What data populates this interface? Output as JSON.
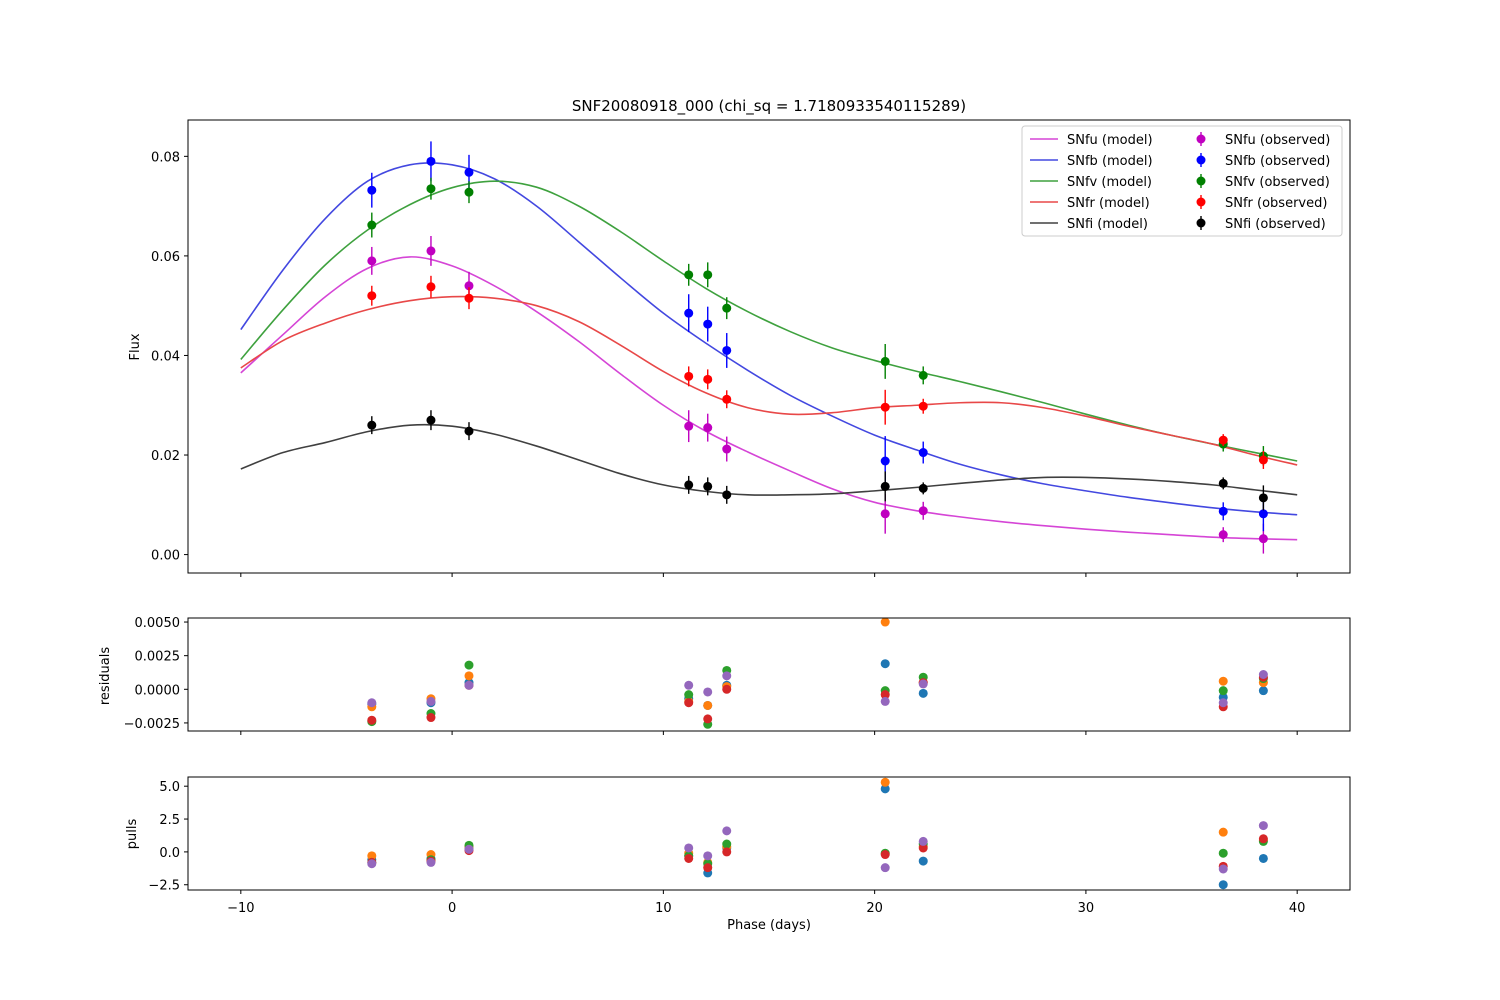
{
  "chart_data": [
    {
      "type": "line",
      "title": "SNF20080918_000 (chi_sq = 1.7180933540115289)",
      "xlabel": "",
      "ylabel": "Flux",
      "xlim": [
        -12.5,
        42.5
      ],
      "ylim": [
        -0.0037,
        0.0873
      ],
      "xticks": [
        -10,
        0,
        10,
        20,
        30,
        40
      ],
      "yticks": [
        0.0,
        0.02,
        0.04,
        0.06,
        0.08
      ],
      "ytick_labels": [
        "0.00",
        "0.02",
        "0.04",
        "0.06",
        "0.08"
      ],
      "legend_position": "top-right",
      "legend_columns": 2,
      "legend_entries": [
        "SNfu (model)",
        "SNfb (model)",
        "SNfv (model)",
        "SNfr (model)",
        "SNfi (model)",
        "SNfu (observed)",
        "SNfb (observed)",
        "SNfv (observed)",
        "SNfr (observed)",
        "SNfi (observed)"
      ],
      "obs_x": [
        -3.8,
        -1.0,
        0.8,
        11.2,
        12.1,
        13.0,
        20.5,
        22.3,
        36.5,
        38.4
      ],
      "series": [
        {
          "name": "SNfu",
          "model_label": "SNfu (model)",
          "observed_label": "SNfu (observed)",
          "model_color": "#d545d6",
          "observed_color": "#c000c0",
          "model_x": [
            -10,
            -8,
            -6,
            -4,
            -2,
            0,
            2,
            4,
            6,
            8,
            10,
            12,
            14,
            16,
            18,
            20,
            22,
            24,
            26,
            28,
            30,
            32,
            34,
            36,
            38,
            40
          ],
          "model_y": [
            0.0365,
            0.0442,
            0.0518,
            0.0575,
            0.0598,
            0.058,
            0.054,
            0.0488,
            0.0428,
            0.0362,
            0.03,
            0.0248,
            0.0206,
            0.0168,
            0.0132,
            0.0105,
            0.0088,
            0.0076,
            0.0066,
            0.0058,
            0.0051,
            0.0045,
            0.004,
            0.0035,
            0.0032,
            0.003
          ],
          "obs_y": [
            0.059,
            0.061,
            0.054,
            0.0258,
            0.0255,
            0.0212,
            0.0082,
            0.0088,
            0.004,
            0.0032
          ],
          "obs_err": [
            0.0028,
            0.003,
            0.0028,
            0.0032,
            0.0028,
            0.0025,
            0.004,
            0.0018,
            0.0015,
            0.003
          ]
        },
        {
          "name": "SNfb",
          "model_label": "SNfb (model)",
          "observed_label": "SNfb (observed)",
          "model_color": "#4348e0",
          "observed_color": "#0000ff",
          "model_x": [
            -10,
            -8,
            -6,
            -4,
            -2,
            0,
            2,
            4,
            6,
            8,
            10,
            12,
            14,
            16,
            18,
            20,
            22,
            24,
            26,
            28,
            30,
            32,
            34,
            36,
            38,
            40
          ],
          "model_y": [
            0.0452,
            0.0572,
            0.0675,
            0.075,
            0.0783,
            0.0783,
            0.0755,
            0.07,
            0.0628,
            0.0555,
            0.0485,
            0.0425,
            0.037,
            0.032,
            0.0278,
            0.024,
            0.021,
            0.0182,
            0.016,
            0.0142,
            0.0128,
            0.0115,
            0.0104,
            0.0094,
            0.0086,
            0.008
          ],
          "obs_y": [
            0.0732,
            0.079,
            0.0768,
            0.0485,
            0.0463,
            0.041,
            0.0188,
            0.0205,
            0.0087,
            0.0082
          ],
          "obs_err": [
            0.0035,
            0.004,
            0.0035,
            0.0038,
            0.0035,
            0.0035,
            0.005,
            0.0022,
            0.0018,
            0.0035
          ]
        },
        {
          "name": "SNfv",
          "model_label": "SNfv (model)",
          "observed_label": "SNfv (observed)",
          "model_color": "#3ea13e",
          "observed_color": "#008000",
          "model_x": [
            -10,
            -8,
            -6,
            -4,
            -2,
            0,
            2,
            4,
            6,
            8,
            10,
            12,
            14,
            16,
            18,
            20,
            22,
            24,
            26,
            28,
            30,
            32,
            34,
            36,
            38,
            40
          ],
          "model_y": [
            0.0392,
            0.0492,
            0.0582,
            0.0652,
            0.0703,
            0.0737,
            0.075,
            0.0738,
            0.07,
            0.0648,
            0.059,
            0.0535,
            0.0488,
            0.0448,
            0.0415,
            0.039,
            0.0368,
            0.0348,
            0.0327,
            0.0305,
            0.0282,
            0.026,
            0.024,
            0.0222,
            0.0205,
            0.0188
          ],
          "obs_y": [
            0.0662,
            0.0735,
            0.0728,
            0.0562,
            0.0562,
            0.0495,
            0.0388,
            0.036,
            0.0222,
            0.0198
          ],
          "obs_err": [
            0.0025,
            0.0022,
            0.0022,
            0.0022,
            0.0025,
            0.0022,
            0.0035,
            0.0018,
            0.0015,
            0.002
          ]
        },
        {
          "name": "SNfr",
          "model_label": "SNfr (model)",
          "observed_label": "SNfr (observed)",
          "model_color": "#e84848",
          "observed_color": "#ff0000",
          "model_x": [
            -10,
            -8,
            -6,
            -4,
            -2,
            0,
            2,
            4,
            6,
            8,
            10,
            12,
            14,
            16,
            18,
            20,
            22,
            24,
            26,
            28,
            30,
            32,
            34,
            36,
            38,
            40
          ],
          "model_y": [
            0.0375,
            0.043,
            0.0465,
            0.0492,
            0.051,
            0.0518,
            0.0515,
            0.05,
            0.0468,
            0.042,
            0.0368,
            0.0325,
            0.0295,
            0.0282,
            0.0285,
            0.0295,
            0.03,
            0.0305,
            0.0305,
            0.0295,
            0.0278,
            0.0258,
            0.024,
            0.0222,
            0.02,
            0.018
          ],
          "obs_y": [
            0.052,
            0.0538,
            0.0515,
            0.0358,
            0.0352,
            0.0312,
            0.0296,
            0.0298,
            0.023,
            0.019
          ],
          "obs_err": [
            0.002,
            0.0022,
            0.0022,
            0.002,
            0.002,
            0.0018,
            0.0035,
            0.0015,
            0.0012,
            0.0018
          ]
        },
        {
          "name": "SNfi",
          "model_label": "SNfi (model)",
          "observed_label": "SNfi (observed)",
          "model_color": "#404040",
          "observed_color": "#000000",
          "model_x": [
            -10,
            -8,
            -6,
            -4,
            -2,
            0,
            2,
            4,
            6,
            8,
            10,
            12,
            14,
            16,
            18,
            20,
            22,
            24,
            26,
            28,
            30,
            32,
            34,
            36,
            38,
            40
          ],
          "model_y": [
            0.0172,
            0.0205,
            0.0225,
            0.0247,
            0.026,
            0.0258,
            0.0242,
            0.0218,
            0.019,
            0.0162,
            0.014,
            0.0127,
            0.012,
            0.012,
            0.0122,
            0.0128,
            0.0135,
            0.0143,
            0.015,
            0.0155,
            0.0155,
            0.0152,
            0.0147,
            0.014,
            0.013,
            0.012
          ],
          "obs_y": [
            0.026,
            0.027,
            0.0248,
            0.014,
            0.0137,
            0.012,
            0.0137,
            0.0133,
            0.0143,
            0.0114
          ],
          "obs_err": [
            0.0018,
            0.002,
            0.0018,
            0.0018,
            0.0018,
            0.0018,
            0.003,
            0.0012,
            0.0012,
            0.0025
          ]
        }
      ]
    },
    {
      "type": "scatter",
      "title": "",
      "xlabel": "",
      "ylabel": "residuals",
      "xlim": [
        -12.5,
        42.5
      ],
      "ylim": [
        -0.0031,
        0.0053
      ],
      "xticks": [
        -10,
        0,
        10,
        20,
        30,
        40
      ],
      "yticks": [
        -0.0025,
        0.0,
        0.0025,
        0.005
      ],
      "ytick_labels": [
        "−0.0025",
        "0.0000",
        "0.0025",
        "0.0050"
      ],
      "x": [
        -3.8,
        -1.0,
        0.8,
        11.2,
        12.1,
        13.0,
        20.5,
        22.3,
        36.5,
        38.4
      ],
      "series": [
        {
          "name": "SNfb",
          "color": "#1f77b4",
          "values": [
            -0.0011,
            -0.001,
            0.0005,
            -0.0007,
            -0.0012,
            0.0003,
            0.0019,
            -0.0003,
            -0.0006,
            -0.0001
          ]
        },
        {
          "name": "SNfr",
          "color": "#ff7f0e",
          "values": [
            -0.0013,
            -0.0007,
            0.001,
            -0.0009,
            -0.0012,
            0.0002,
            0.005,
            0.0005,
            0.0006,
            0.0005
          ]
        },
        {
          "name": "SNfv",
          "color": "#2ca02c",
          "values": [
            -0.0024,
            -0.0018,
            0.0018,
            -0.0004,
            -0.0026,
            0.0014,
            -0.0001,
            0.0009,
            -0.0001,
            0.0008
          ]
        },
        {
          "name": "SNfi",
          "color": "#d62728",
          "values": [
            -0.0023,
            -0.0021,
            0.0003,
            -0.001,
            -0.0022,
            0.0,
            -0.0004,
            0.0005,
            -0.0013,
            0.0009
          ]
        },
        {
          "name": "SNfu",
          "color": "#9467bd",
          "values": [
            -0.001,
            -0.0009,
            0.0003,
            0.0003,
            -0.0002,
            0.001,
            -0.0009,
            0.0004,
            -0.001,
            0.0011
          ]
        }
      ]
    },
    {
      "type": "scatter",
      "title": "",
      "xlabel": "Phase (days)",
      "ylabel": "pulls",
      "xlim": [
        -12.5,
        42.5
      ],
      "ylim": [
        -2.9,
        5.7
      ],
      "xticks": [
        -10,
        0,
        10,
        20,
        30,
        40
      ],
      "xtick_labels": [
        "−10",
        "0",
        "10",
        "20",
        "30",
        "40"
      ],
      "yticks": [
        -2.5,
        0.0,
        2.5,
        5.0
      ],
      "ytick_labels": [
        "−2.5",
        "0.0",
        "2.5",
        "5.0"
      ],
      "x": [
        -3.8,
        -1.0,
        0.8,
        11.2,
        12.1,
        13.0,
        20.5,
        22.3,
        36.5,
        38.4
      ],
      "series": [
        {
          "name": "SNfb",
          "color": "#1f77b4",
          "values": [
            -0.6,
            -0.5,
            0.3,
            -0.3,
            -1.6,
            0.3,
            4.8,
            -0.7,
            -2.5,
            -0.5
          ]
        },
        {
          "name": "SNfr",
          "color": "#ff7f0e",
          "values": [
            -0.3,
            -0.2,
            0.4,
            -0.1,
            -0.8,
            0.4,
            5.3,
            0.4,
            1.5,
            0.9
          ]
        },
        {
          "name": "SNfv",
          "color": "#2ca02c",
          "values": [
            -0.8,
            -0.6,
            0.5,
            -0.3,
            -0.9,
            0.6,
            -0.1,
            0.6,
            -0.1,
            0.8
          ]
        },
        {
          "name": "SNfi",
          "color": "#d62728",
          "values": [
            -0.8,
            -0.7,
            0.1,
            -0.5,
            -1.2,
            0.0,
            -0.2,
            0.3,
            -1.1,
            1.0
          ]
        },
        {
          "name": "SNfu",
          "color": "#9467bd",
          "values": [
            -0.9,
            -0.8,
            0.2,
            0.3,
            -0.3,
            1.6,
            -1.2,
            0.8,
            -1.3,
            2.0
          ]
        }
      ]
    }
  ]
}
